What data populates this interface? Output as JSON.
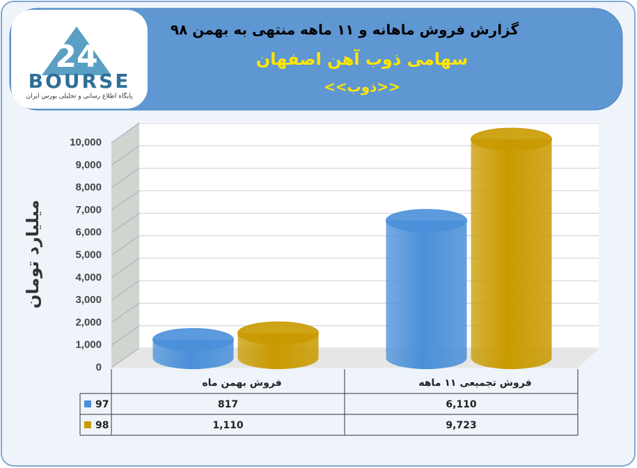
{
  "logo": {
    "mark": "24",
    "name": "BOURSE",
    "tagline": "پایگاه اطلاع رسانی و تحلیلی بورس ایران"
  },
  "chart_data": {
    "type": "bar",
    "title": "گزارش فروش ماهانه و ۱۱ ماهه منتهی به بهمن ۹۸",
    "subtitle": "سهامی ذوب آهن اصفهان",
    "annotation": "<<ذوب>>",
    "y_label": "میلیارد تومان",
    "categories": [
      "فروش بهمن  ماه",
      "فروش تجمیعی ۱۱ ماهه"
    ],
    "series": [
      {
        "name": "97",
        "color": "#4a90d9",
        "values": [
          817,
          6110
        ],
        "value_labels": [
          "817",
          "6,110"
        ]
      },
      {
        "name": "98",
        "color": "#c99a00",
        "values": [
          1110,
          9723
        ],
        "value_labels": [
          "1,110",
          "9,723"
        ]
      }
    ],
    "ylim": [
      0,
      10000
    ],
    "yticks": [
      0,
      {
        "value": 1000,
        "label": "1,000"
      },
      {
        "value": 2000,
        "label": "2,000"
      },
      {
        "value": 3000,
        "label": "3,000"
      },
      {
        "value": 4000,
        "label": "4,000"
      },
      {
        "value": 5000,
        "label": "5,000"
      },
      {
        "value": 6000,
        "label": "6,000"
      },
      {
        "value": 7000,
        "label": "7,000"
      },
      {
        "value": 8000,
        "label": "8,000"
      },
      {
        "value": 9000,
        "label": "9,000"
      },
      {
        "value": 10000,
        "label": "10,000"
      }
    ],
    "grid": true,
    "data_table": true
  }
}
